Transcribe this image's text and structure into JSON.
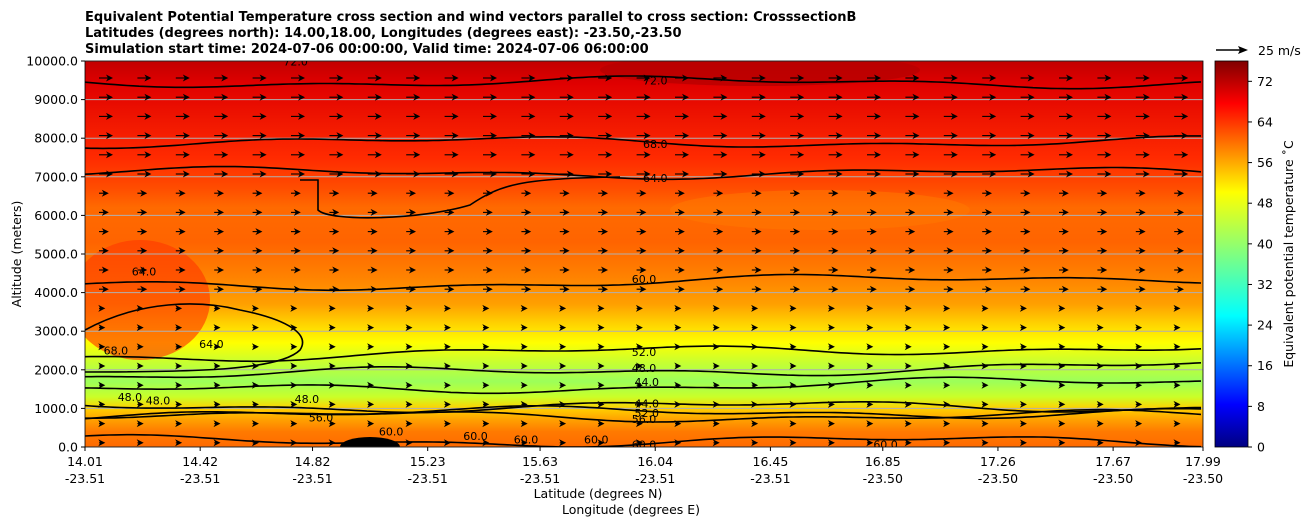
{
  "chart_data": {
    "type": "heatmap",
    "title_lines": [
      "Equivalent Potential Temperature cross section and wind vectors parallel to cross section: CrosssectionB",
      "Latitudes (degrees north): 14.00,18.00, Longitudes (degrees east): -23.50,-23.50",
      "Simulation start time: 2024-07-06 00:00:00, Valid time: 2024-07-06 06:00:00"
    ],
    "xlabel_lat": "Latitude (degrees N)",
    "xlabel_lon": "Longitude (degrees E)",
    "ylabel": "Altitude (meters)",
    "colorbar_label": "Equivalent potential temperature ˚C",
    "quiver_key_label": "25 m/s",
    "x_ticks": [
      {
        "lat": "14.01",
        "lon": "-23.51"
      },
      {
        "lat": "14.42",
        "lon": "-23.51"
      },
      {
        "lat": "14.82",
        "lon": "-23.51"
      },
      {
        "lat": "15.23",
        "lon": "-23.51"
      },
      {
        "lat": "15.63",
        "lon": "-23.51"
      },
      {
        "lat": "16.04",
        "lon": "-23.51"
      },
      {
        "lat": "16.45",
        "lon": "-23.51"
      },
      {
        "lat": "16.85",
        "lon": "-23.50"
      },
      {
        "lat": "17.26",
        "lon": "-23.50"
      },
      {
        "lat": "17.67",
        "lon": "-23.50"
      },
      {
        "lat": "17.99",
        "lon": "-23.50"
      }
    ],
    "y_ticks": [
      "0.0",
      "1000.0",
      "2000.0",
      "3000.0",
      "4000.0",
      "5000.0",
      "6000.0",
      "7000.0",
      "8000.0",
      "9000.0",
      "10000.0"
    ],
    "ylim": [
      0,
      10000
    ],
    "colorbar_ticks": [
      "0",
      "8",
      "16",
      "24",
      "32",
      "40",
      "48",
      "56",
      "64",
      "72"
    ],
    "colorbar_range": [
      0,
      76
    ],
    "colormap": "jet",
    "grid": "horizontal",
    "wind_direction": "northward (parallel to cross section)",
    "contours": [
      {
        "level": "72.0",
        "altitude_approx": 9450
      },
      {
        "level": "68.0",
        "altitude_approx": 7900
      },
      {
        "level": "64.0",
        "altitude_approx": 7100
      },
      {
        "level": "60.0",
        "altitude_approx": 4400
      },
      {
        "level": "52.0",
        "altitude_approx": 2600
      },
      {
        "level": "48.0",
        "altitude_approx": 2100
      },
      {
        "level": "44.0",
        "altitude_approx": 1700
      },
      {
        "level": "44.0",
        "altitude_approx": 1050
      },
      {
        "level": "52.0",
        "altitude_approx": 900
      },
      {
        "level": "56.0",
        "altitude_approx": 800
      },
      {
        "level": "60.0",
        "altitude_approx": 150
      }
    ],
    "contour_labels": [
      {
        "text": "72.0",
        "lat": 16.04,
        "alt": 9500
      },
      {
        "text": "68.0",
        "lat": 16.04,
        "alt": 7850
      },
      {
        "text": "64.0",
        "lat": 16.04,
        "alt": 6970
      },
      {
        "text": "60.0",
        "lat": 16.0,
        "alt": 4350
      },
      {
        "text": "52.0",
        "lat": 16.0,
        "alt": 2460
      },
      {
        "text": "48.0",
        "lat": 16.0,
        "alt": 2050
      },
      {
        "text": "44.0",
        "lat": 16.01,
        "alt": 1680
      },
      {
        "text": "44.0",
        "lat": 16.01,
        "alt": 1130
      },
      {
        "text": "52.0",
        "lat": 16.01,
        "alt": 880
      },
      {
        "text": "56.0",
        "lat": 16.0,
        "alt": 720
      },
      {
        "text": "60.0",
        "lat": 16.0,
        "alt": 60
      },
      {
        "text": "56.0",
        "lat": 14.85,
        "alt": 770
      },
      {
        "text": "64.0",
        "lat": 14.22,
        "alt": 4550
      },
      {
        "text": "64.0",
        "lat": 14.46,
        "alt": 2670
      },
      {
        "text": "68.0",
        "lat": 14.12,
        "alt": 2500
      },
      {
        "text": "48.0",
        "lat": 14.17,
        "alt": 1300
      },
      {
        "text": "48.0",
        "lat": 14.27,
        "alt": 1200
      },
      {
        "text": "48.0",
        "lat": 14.8,
        "alt": 1250
      },
      {
        "text": "60.0",
        "lat": 15.1,
        "alt": 400
      },
      {
        "text": "60.0",
        "lat": 15.4,
        "alt": 280
      },
      {
        "text": "60.0",
        "lat": 15.58,
        "alt": 200
      },
      {
        "text": "60.0",
        "lat": 15.83,
        "alt": 200
      },
      {
        "text": "60.0",
        "lat": 16.86,
        "alt": 60
      },
      {
        "text": "72.0",
        "lat": 14.76,
        "alt": 9990
      }
    ]
  }
}
